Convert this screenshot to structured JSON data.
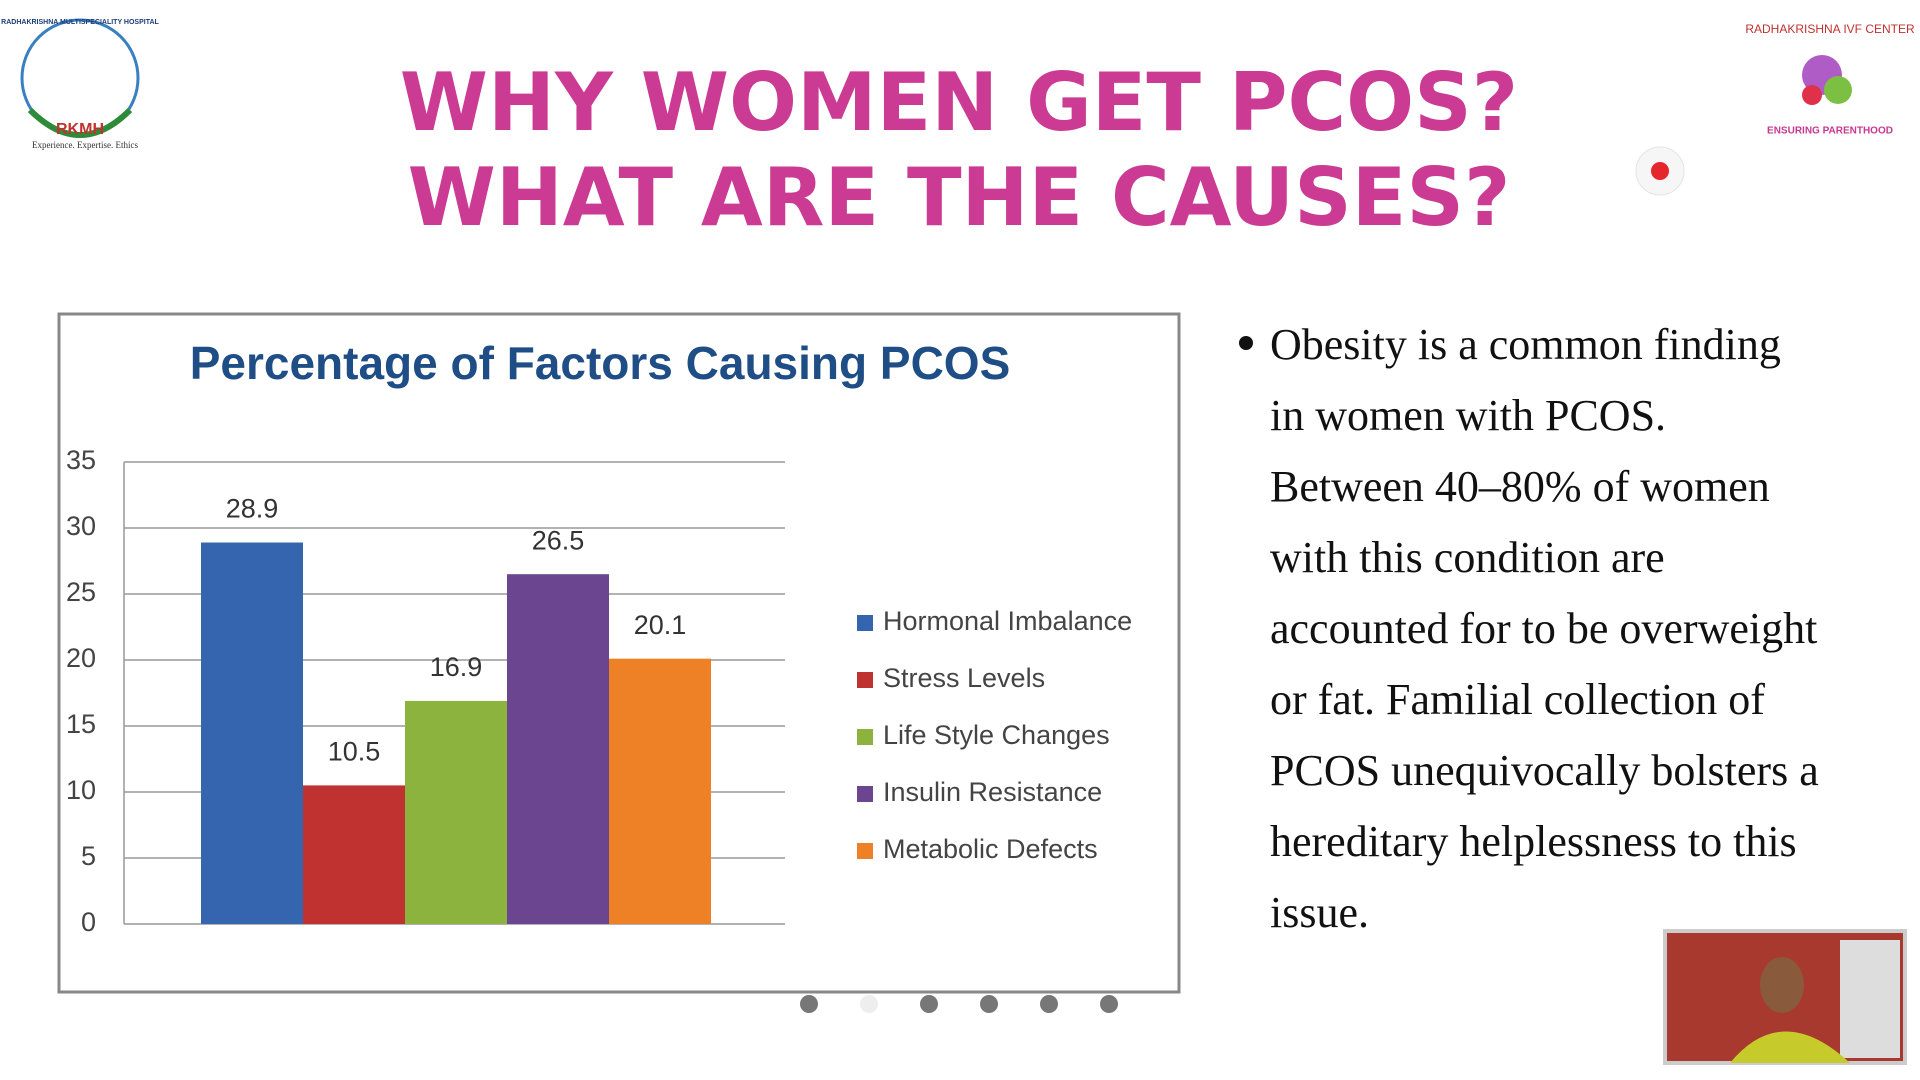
{
  "slide": {
    "title_lines": [
      "WHY WOMEN GET PCOS?",
      "WHAT ARE THE CAUSES?"
    ],
    "bullet_lines": [
      "Obesity is a common finding",
      "in women with PCOS.",
      "Between 40–80% of women",
      "with this condition are",
      "accounted for to be overweight",
      "or fat. Familial collection of",
      "PCOS unequivocally bolsters a",
      "hereditary helplessness to this",
      "issue."
    ]
  },
  "logos": {
    "left_name": "RADHAKRISHNA MULTISPECIALITY HOSPITAL",
    "left_short": "RKMH",
    "left_tagline": "Experience. Expertise. Ethics",
    "right_name": "RADHAKRISHNA IVF CENTER",
    "right_tagline": "ENSURING PARENTHOOD"
  },
  "chart_data": {
    "type": "bar",
    "title": "Percentage of Factors Causing PCOS",
    "categories": [
      null
    ],
    "series": [
      {
        "name": "Hormonal Imbalance",
        "color": "#3565ae",
        "values": [
          28.9
        ]
      },
      {
        "name": "Stress Levels",
        "color": "#c0322f",
        "values": [
          10.5
        ]
      },
      {
        "name": "Life Style Changes",
        "color": "#8cb33d",
        "values": [
          16.9
        ]
      },
      {
        "name": "Insulin Resistance",
        "color": "#6b4590",
        "values": [
          26.5
        ]
      },
      {
        "name": "Metabolic Defects",
        "color": "#ee8126",
        "values": [
          20.1
        ]
      }
    ],
    "ylim": [
      0,
      35
    ],
    "yticks": [
      0,
      5,
      10,
      15,
      20,
      25,
      30,
      35
    ],
    "grid": true,
    "legend": "right"
  }
}
